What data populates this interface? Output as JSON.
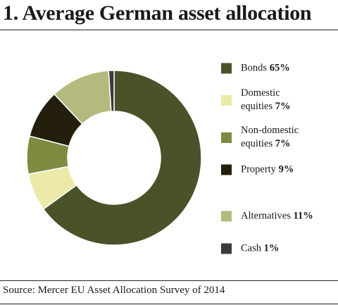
{
  "chart_data": {
    "type": "donut",
    "title": "1. Average German asset allocation",
    "source": "Source: Mercer EU Asset Allocation Survey of 2014",
    "categories": [
      "Bonds",
      "Domestic equities",
      "Non-domestic equities",
      "Property",
      "Alternatives",
      "Cash"
    ],
    "values": [
      65,
      7,
      7,
      9,
      11,
      1
    ],
    "value_labels": [
      "65%",
      "7%",
      "7%",
      "9%",
      "11%",
      "1%"
    ],
    "colors": [
      "#4a5229",
      "#ede9a8",
      "#7e8a40",
      "#231f0c",
      "#b6b97e",
      "#3a3a3c"
    ]
  }
}
